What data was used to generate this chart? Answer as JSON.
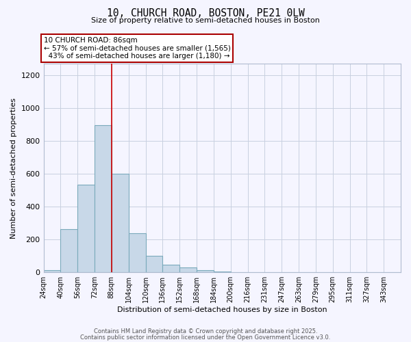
{
  "title_line1": "10, CHURCH ROAD, BOSTON, PE21 0LW",
  "title_line2": "Size of property relative to semi-detached houses in Boston",
  "xlabel": "Distribution of semi-detached houses by size in Boston",
  "ylabel": "Number of semi-detached properties",
  "bar_labels": [
    "24sqm",
    "40sqm",
    "56sqm",
    "72sqm",
    "88sqm",
    "104sqm",
    "120sqm",
    "136sqm",
    "152sqm",
    "168sqm",
    "184sqm",
    "200sqm",
    "216sqm",
    "231sqm",
    "247sqm",
    "263sqm",
    "279sqm",
    "295sqm",
    "311sqm",
    "327sqm",
    "343sqm"
  ],
  "bar_values": [
    10,
    260,
    535,
    895,
    600,
    235,
    100,
    45,
    30,
    10,
    5,
    0,
    0,
    0,
    0,
    0,
    0,
    0,
    0,
    0,
    0
  ],
  "bar_color": "#c8d8e8",
  "bar_edge_color": "#7aaabb",
  "property_label": "10 CHURCH ROAD: 86sqm",
  "smaller_pct": "57%",
  "smaller_count": "1,565",
  "larger_pct": "43%",
  "larger_count": "1,180",
  "vline_color": "#cc0000",
  "ylim": [
    0,
    1270
  ],
  "yticks": [
    0,
    200,
    400,
    600,
    800,
    1000,
    1200
  ],
  "bin_edges": [
    16,
    32,
    48,
    64,
    80,
    96,
    112,
    128,
    144,
    160,
    176,
    192,
    208,
    224,
    240,
    256,
    272,
    288,
    304,
    320,
    336,
    352
  ],
  "vline_x_bin_index": 4,
  "footer_line1": "Contains HM Land Registry data © Crown copyright and database right 2025.",
  "footer_line2": "Contains public sector information licensed under the Open Government Licence v3.0.",
  "bg_color": "#f5f5ff",
  "grid_color": "#c8d0e0",
  "annotation_box_color": "#aa0000",
  "annotation_bg": "#ffffff"
}
